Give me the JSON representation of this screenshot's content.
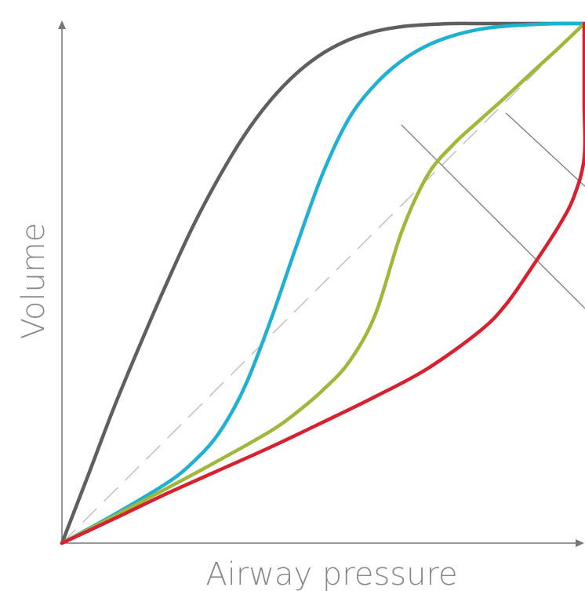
{
  "chart_data": {
    "type": "line",
    "title": "",
    "xlabel": "Airway pressure",
    "ylabel": "Volume",
    "xlim": [
      0,
      1
    ],
    "ylim": [
      0,
      1
    ],
    "grid": false,
    "legend": "none",
    "series": [
      {
        "color": "#5f5f5f",
        "x": [
          0,
          0.05,
          0.1,
          0.15,
          0.2,
          0.25,
          0.3,
          0.35,
          0.4,
          0.45,
          0.5,
          0.55,
          0.6,
          0.65,
          0.7,
          0.75,
          0.8,
          0.85,
          0.9,
          0.95,
          1
        ],
        "y": [
          0,
          0.13,
          0.262,
          0.383,
          0.499,
          0.608,
          0.703,
          0.786,
          0.853,
          0.905,
          0.943,
          0.969,
          0.985,
          0.994,
          0.998,
          1,
          1,
          1,
          1,
          1,
          1
        ]
      },
      {
        "color": "#1fb0d3",
        "x": [
          0,
          0.1,
          0.2,
          0.25,
          0.3,
          0.35,
          0.4,
          0.45,
          0.5,
          0.55,
          0.6,
          0.65,
          0.7,
          0.75,
          0.8,
          0.85,
          0.9,
          0.95,
          1
        ],
        "y": [
          0,
          0.055,
          0.115,
          0.155,
          0.211,
          0.301,
          0.43,
          0.575,
          0.713,
          0.818,
          0.883,
          0.928,
          0.958,
          0.977,
          0.989,
          0.995,
          0.998,
          1,
          1
        ]
      },
      {
        "color": "#9fb83a",
        "x": [
          0,
          0.1,
          0.2,
          0.3,
          0.4,
          0.45,
          0.5,
          0.55,
          0.6,
          0.65,
          0.7,
          0.75,
          0.8,
          0.85,
          0.9,
          0.95,
          1
        ],
        "y": [
          0,
          0.052,
          0.105,
          0.159,
          0.216,
          0.252,
          0.295,
          0.349,
          0.44,
          0.598,
          0.708,
          0.768,
          0.814,
          0.859,
          0.906,
          0.952,
          1
        ]
      },
      {
        "color": "#d9202f",
        "x": [
          0,
          0.1,
          0.2,
          0.3,
          0.4,
          0.5,
          0.6,
          0.7,
          0.8,
          0.85,
          0.9,
          0.95,
          0.98,
          1,
          1,
          1
        ],
        "y": [
          0,
          0.047,
          0.095,
          0.14,
          0.185,
          0.233,
          0.282,
          0.336,
          0.408,
          0.459,
          0.531,
          0.608,
          0.666,
          0.742,
          0.85,
          1
        ]
      },
      {
        "color": "#bdbdbd",
        "style": "dashed",
        "x": [
          0,
          1
        ],
        "y": [
          0,
          1
        ]
      }
    ],
    "annotations": [
      {
        "type": "line",
        "color": "#7a7a7a",
        "x": [
          0.65,
          1.03
        ],
        "y": [
          0.805,
          0.423
        ]
      },
      {
        "type": "line",
        "color": "#7a7a7a",
        "x": [
          0.85,
          1.03
        ],
        "y": [
          0.828,
          0.66
        ]
      }
    ]
  }
}
